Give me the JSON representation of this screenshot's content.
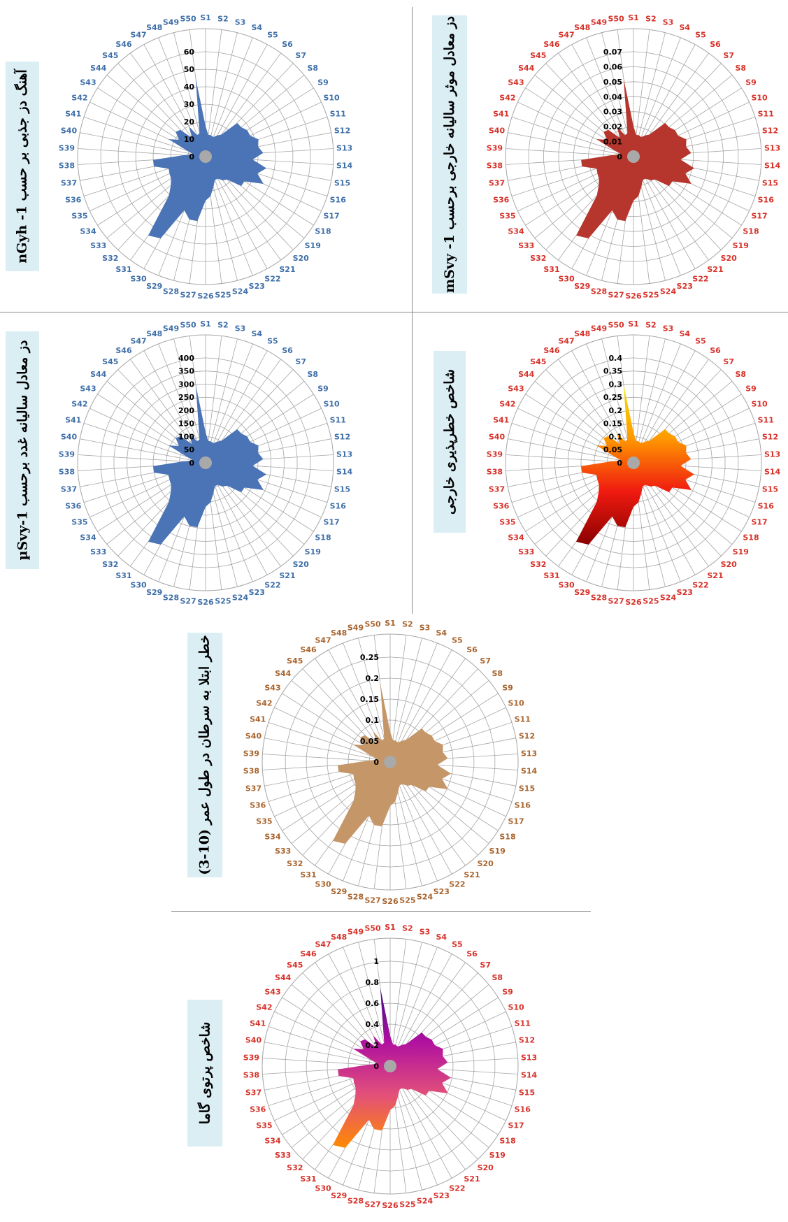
{
  "charts": [
    {
      "key": "gamma_dose",
      "label": "آهنگ دز جذبی بر حسب nGyh -1",
      "label_color": "#3f6fa8",
      "fill": "#4a74b6",
      "ticks": [
        "0",
        "10",
        "20",
        "30",
        "40",
        "50",
        "60"
      ]
    },
    {
      "key": "annual_effective_dose",
      "label": "دز معادل موثر سالیانه خارجی برحسب mSvy -1",
      "label_color": "#d7322a",
      "fill": "#b6362e",
      "ticks": [
        "0",
        "0.01",
        "0.02",
        "0.03",
        "0.04",
        "0.05",
        "0.06",
        "0.07"
      ]
    },
    {
      "key": "gonadal_dose",
      "label": "دز معادل سالیانه غدد برحسب µSvy-1",
      "label_color": "#3f6fa8",
      "fill": "#4a74b6",
      "ticks": [
        "0",
        "50",
        "100",
        "150",
        "200",
        "250",
        "300",
        "350",
        "400"
      ]
    },
    {
      "key": "external_hazard",
      "label": "شاخص خطرپذیری خارجی",
      "label_color": "#d7322a",
      "fill": "gradient-hazard",
      "ticks": [
        "0",
        "0.05",
        "0.1",
        "0.15",
        "0.2",
        "0.25",
        "0.3",
        "0.35",
        "0.4"
      ]
    },
    {
      "key": "cancer_risk",
      "label": "خطر ابتلا به سرطان در طول عمر (10-3)",
      "label_color": "#a8642e",
      "fill": "#c49668",
      "ticks": [
        "0",
        "0.05",
        "0.1",
        "0.15",
        "0.2",
        "0.25"
      ]
    },
    {
      "key": "gamma_index",
      "label": "شاخص پرتوی گاما",
      "label_color": "#d7322a",
      "fill": "gradient-gamma",
      "ticks": [
        "0",
        "0.2",
        "0.4",
        "0.6",
        "0.8",
        "1"
      ]
    }
  ],
  "chart_data": {
    "type": "radar",
    "categories": [
      "S1",
      "S2",
      "S3",
      "S4",
      "S5",
      "S6",
      "S7",
      "S8",
      "S9",
      "S10",
      "S11",
      "S12",
      "S13",
      "S14",
      "S15",
      "S16",
      "S17",
      "S18",
      "S19",
      "S20",
      "S21",
      "S22",
      "S23",
      "S24",
      "S25",
      "S26",
      "S27",
      "S28",
      "S29",
      "S30",
      "S31",
      "S32",
      "S33",
      "S34",
      "S35",
      "S36",
      "S37",
      "S38",
      "S39",
      "S40",
      "S41",
      "S42",
      "S43",
      "S44",
      "S45",
      "S46",
      "S47",
      "S48",
      "S49",
      "S50"
    ],
    "series_shape": [
      0.29,
      0.21,
      0.21,
      0.2,
      0.23,
      0.26,
      0.44,
      0.44,
      0.47,
      0.47,
      0.53,
      0.51,
      0.55,
      0.45,
      0.59,
      0.52,
      0.61,
      0.44,
      0.44,
      0.3,
      0.28,
      0.24,
      0.24,
      0.3,
      0.38,
      0.42,
      0.62,
      0.62,
      0.55,
      0.89,
      0.93,
      0.51,
      0.43,
      0.39,
      0.38,
      0.37,
      0.5,
      0.5,
      0.21,
      0.12,
      0.19,
      0.39,
      0.3,
      0.37,
      0.35,
      0.22,
      0.33,
      0.22,
      0.23,
      0.75
    ],
    "series": [
      {
        "max": 60
      },
      {
        "max": 0.07
      },
      {
        "max": 400
      },
      {
        "max": 0.4
      },
      {
        "max": 0.25
      },
      {
        "max": 1
      }
    ]
  },
  "colors": {
    "gradient_hazard": [
      "#f5e400",
      "#ff9900",
      "#f01a10",
      "#8a0000"
    ],
    "gradient_gamma": [
      "#3a1080",
      "#b010a0",
      "#e2507a",
      "#ff8a00"
    ],
    "grid": "#a6a6a6",
    "center": "#a9a9a9",
    "tick_text": "#000000"
  }
}
